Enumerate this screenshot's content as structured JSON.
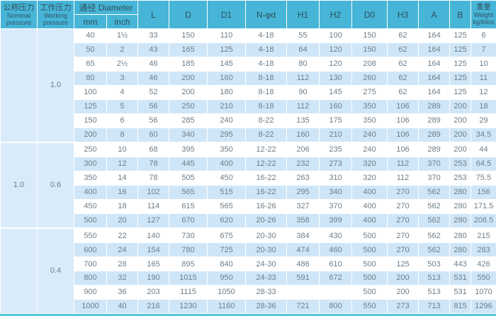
{
  "table": {
    "header": {
      "nominal_cn": "公称压力",
      "nominal_en1": "Nominal",
      "nominal_en2": "pressure",
      "working_cn": "工作压力",
      "working_en1": "Working",
      "working_en2": "pressure",
      "diameter": "通径 Diameter",
      "mm": "mm",
      "inch": "inch",
      "cols": [
        "L",
        "D",
        "D1",
        "N-φd",
        "H1",
        "H2",
        "D0",
        "H3",
        "A",
        "B"
      ],
      "weight_cn": "重量",
      "weight_en": "Weight",
      "weight_unit": "kg/kilos"
    }
  },
  "colors": {
    "header_bg": "#46b5d7",
    "stripe_blue": "#cfe6f8",
    "pressure_bg": "#d9ebfa",
    "grid_line": "#ffffff",
    "accent_line": "#56c6dd",
    "data_text": "#6f7d87",
    "header_text": "#2f4e5c"
  },
  "chart_data": {
    "type": "table",
    "columns": [
      "公称压力 Nominal pressure",
      "工作压力 Working pressure",
      "通径 Diameter mm",
      "通径 Diameter inch",
      "L",
      "D",
      "D1",
      "N-φd",
      "H1",
      "H2",
      "D0",
      "H3",
      "A",
      "B",
      "重量 Weight kg/kilos"
    ],
    "groups": [
      {
        "nominal": "",
        "working": "1.0",
        "row_count": 8
      },
      {
        "nominal": "1.0",
        "working": "0.6",
        "row_count": 6
      },
      {
        "nominal": "",
        "working": "0.4",
        "row_count": 6
      }
    ],
    "rows": [
      [
        "40",
        "1½",
        "33",
        "150",
        "110",
        "4-18",
        "55",
        "100",
        "150",
        "62",
        "164",
        "125",
        "6"
      ],
      [
        "50",
        "2",
        "43",
        "165",
        "125",
        "4-18",
        "64",
        "120",
        "150",
        "62",
        "164",
        "125",
        "7"
      ],
      [
        "65",
        "2½",
        "46",
        "185",
        "145",
        "4-18",
        "80",
        "120",
        "208",
        "62",
        "164",
        "125",
        "10"
      ],
      [
        "80",
        "3",
        "46",
        "200",
        "160",
        "8-18",
        "112",
        "130",
        "260",
        "62",
        "164",
        "125",
        "11"
      ],
      [
        "100",
        "4",
        "52",
        "200",
        "180",
        "8-18",
        "90",
        "145",
        "275",
        "62",
        "164",
        "125",
        "12"
      ],
      [
        "125",
        "5",
        "56",
        "250",
        "210",
        "8-18",
        "112",
        "160",
        "350",
        "106",
        "289",
        "200",
        "18"
      ],
      [
        "150",
        "6",
        "56",
        "285",
        "240",
        "8-22",
        "135",
        "175",
        "350",
        "106",
        "289",
        "200",
        "29"
      ],
      [
        "200",
        "8",
        "60",
        "340",
        "295",
        "8-22",
        "160",
        "210",
        "240",
        "106",
        "289",
        "200",
        "34.5"
      ],
      [
        "250",
        "10",
        "68",
        "395",
        "350",
        "12-22",
        "206",
        "235",
        "240",
        "106",
        "289",
        "200",
        "44"
      ],
      [
        "300",
        "12",
        "78",
        "445",
        "400",
        "12-22",
        "232",
        "273",
        "320",
        "112",
        "370",
        "253",
        "64.5"
      ],
      [
        "350",
        "14",
        "78",
        "505",
        "450",
        "16-22",
        "263",
        "310",
        "320",
        "112",
        "370",
        "253",
        "75.5"
      ],
      [
        "400",
        "16",
        "102",
        "565",
        "515",
        "16-22",
        "295",
        "340",
        "400",
        "270",
        "562",
        "280",
        "156"
      ],
      [
        "450",
        "18",
        "114",
        "615",
        "565",
        "16-26",
        "327",
        "370",
        "400",
        "270",
        "562",
        "280",
        "171.5"
      ],
      [
        "500",
        "20",
        "127",
        "670",
        "620",
        "20-26",
        "358",
        "399",
        "400",
        "270",
        "562",
        "280",
        "206.5"
      ],
      [
        "550",
        "22",
        "140",
        "730",
        "675",
        "20-30",
        "384",
        "430",
        "500",
        "270",
        "562",
        "280",
        "215"
      ],
      [
        "600",
        "24",
        "154",
        "780",
        "725",
        "20-30",
        "474",
        "460",
        "500",
        "270",
        "562",
        "280",
        "283"
      ],
      [
        "700",
        "28",
        "165",
        "895",
        "840",
        "24-30",
        "486",
        "610",
        "500",
        "125",
        "503",
        "443",
        "426"
      ],
      [
        "800",
        "32",
        "190",
        "1015",
        "950",
        "24-33",
        "591",
        "672",
        "500",
        "200",
        "513",
        "531",
        "550"
      ],
      [
        "900",
        "36",
        "203",
        "1115",
        "1050",
        "28-33",
        "",
        "",
        "500",
        "200",
        "513",
        "531",
        "1070"
      ],
      [
        "1000",
        "40",
        "216",
        "1230",
        "1160",
        "28-36",
        "721",
        "800",
        "550",
        "273",
        "713",
        "815",
        "1296"
      ]
    ]
  }
}
